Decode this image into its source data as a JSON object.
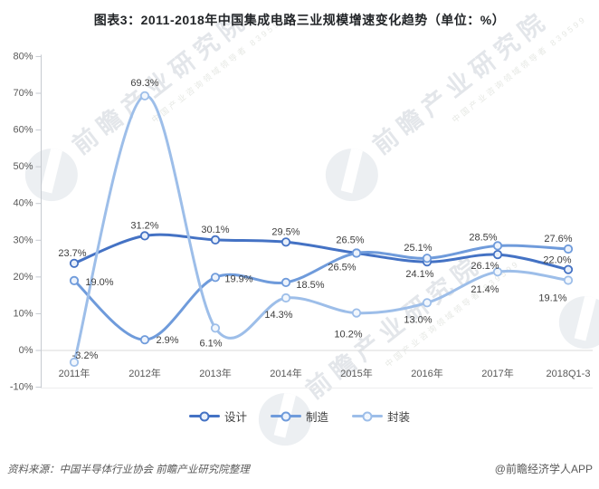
{
  "title": "图表3：2011-2018年中国集成电路三业规模增速变化趋势（单位：%）",
  "watermark": {
    "big": "前瞻产业研究院",
    "small": "中国产业咨询领域领导者 839599"
  },
  "footer": {
    "source": "资料来源：中国半导体行业协会 前瞻产业研究院整理",
    "credit": "@前瞻经济学人APP"
  },
  "chart_data": {
    "type": "line",
    "title": "图表3：2011-2018年中国集成电路三业规模增速变化趋势（单位：%）",
    "categories": [
      "2011年",
      "2012年",
      "2013年",
      "2014年",
      "2015年",
      "2016年",
      "2017年",
      "2018Q1-3"
    ],
    "series": [
      {
        "id": "design",
        "name": "设计",
        "color": "#4472C4",
        "marker_fill": "#E9F0FA",
        "values": [
          23.7,
          31.2,
          30.1,
          29.5,
          26.5,
          24.1,
          26.1,
          22.0
        ]
      },
      {
        "id": "manufacturing",
        "name": "制造",
        "color": "#6F9BDB",
        "marker_fill": "#EDF3FC",
        "values": [
          19.0,
          2.9,
          19.9,
          18.5,
          26.5,
          25.1,
          28.5,
          27.6
        ]
      },
      {
        "id": "packaging",
        "name": "封装",
        "color": "#9DBEE9",
        "marker_fill": "#F2F7FD",
        "values": [
          -3.2,
          69.3,
          6.1,
          14.3,
          10.2,
          13.0,
          21.4,
          19.1
        ]
      }
    ],
    "ylim": [
      -10,
      80
    ],
    "ytick_step": 10,
    "ytick_suffix": "%",
    "grid": "zero-line-only",
    "legend_position": "bottom",
    "value_label_format": "0.0%",
    "label_offsets": [
      [
        [
          -2,
          -11
        ],
        [
          0,
          -11
        ],
        [
          0,
          -11
        ],
        [
          0,
          -11
        ],
        [
          -7,
          -14
        ],
        [
          -8,
          14
        ],
        [
          -14,
          13
        ],
        [
          -12,
          -10
        ]
      ],
      [
        [
          28,
          2
        ],
        [
          25,
          1
        ],
        [
          26,
          2
        ],
        [
          27,
          3
        ],
        [
          -16,
          16
        ],
        [
          -10,
          -11
        ],
        [
          -16,
          -9
        ],
        [
          -11,
          -11
        ]
      ],
      [
        [
          12,
          -7
        ],
        [
          0,
          -14
        ],
        [
          -5,
          17
        ],
        [
          -8,
          19
        ],
        [
          -9,
          24
        ],
        [
          -10,
          19
        ],
        [
          -14,
          20
        ],
        [
          -17,
          20
        ]
      ]
    ]
  }
}
